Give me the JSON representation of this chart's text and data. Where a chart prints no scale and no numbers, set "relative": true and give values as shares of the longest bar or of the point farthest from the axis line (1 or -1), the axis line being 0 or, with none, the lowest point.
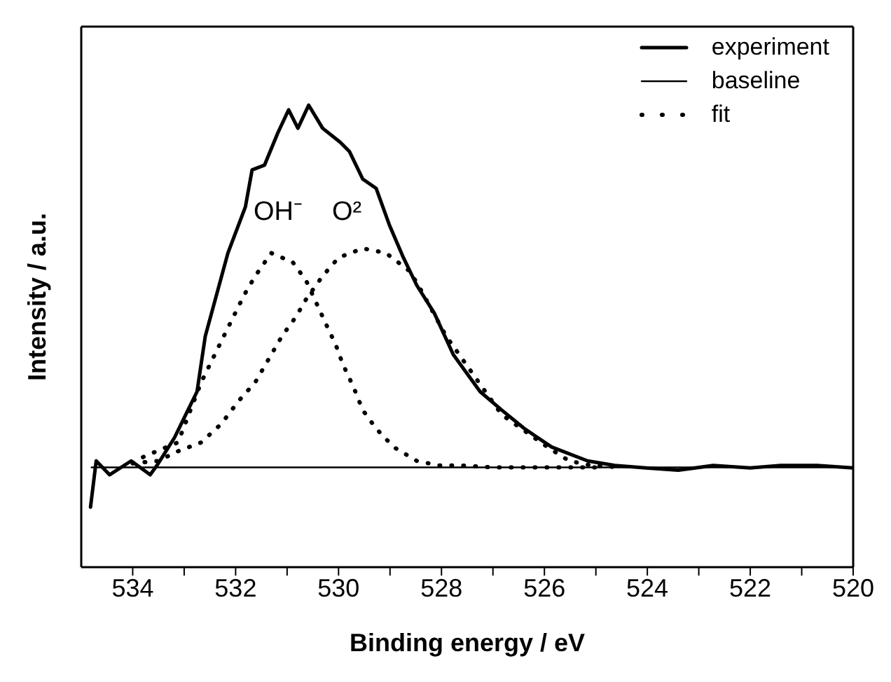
{
  "chart_data": {
    "type": "line",
    "xlabel": "Binding energy / eV",
    "ylabel": "Intensity / a.u.",
    "relative": true,
    "tick_labels": "x",
    "legend": "top right",
    "marker": "none",
    "xlim": [
      535,
      520
    ],
    "xticks": [
      534,
      {
        "value": 533,
        "label": null
      },
      532,
      {
        "value": 531,
        "label": null
      },
      530,
      {
        "value": 529,
        "label": null
      },
      528,
      {
        "value": 527,
        "label": null
      },
      526,
      {
        "value": 525,
        "label": null
      },
      524,
      {
        "value": 523,
        "label": null
      },
      522,
      {
        "value": 521,
        "label": null
      },
      520
    ],
    "annotations": [
      "OH⁻",
      "O²"
    ],
    "series": [
      {
        "name": "experiment",
        "color": "#000000",
        "line_style": "solid",
        "x": [
          534.82,
          534.71,
          534.45,
          534.03,
          533.66,
          533.53,
          533.19,
          532.75,
          532.59,
          532.15,
          531.81,
          531.68,
          531.44,
          531.18,
          530.97,
          530.79,
          530.58,
          530.31,
          529.97,
          529.79,
          529.53,
          529.27,
          529.01,
          528.74,
          528.48,
          528.14,
          527.77,
          527.25,
          526.83,
          526.39,
          525.86,
          525.16,
          524.63,
          524.03,
          523.4,
          522.72,
          522.0,
          521.41,
          520.7,
          520.0
        ],
        "values": [
          0.13,
          0.23,
          0.2,
          0.23,
          0.2,
          0.22,
          0.28,
          0.38,
          0.5,
          0.68,
          0.78,
          0.86,
          0.87,
          0.94,
          0.99,
          0.95,
          1.0,
          0.95,
          0.92,
          0.9,
          0.84,
          0.82,
          0.74,
          0.67,
          0.61,
          0.55,
          0.46,
          0.38,
          0.34,
          0.3,
          0.26,
          0.23,
          0.22,
          0.215,
          0.21,
          0.22,
          0.215,
          0.22,
          0.22,
          0.215
        ]
      },
      {
        "name": "baseline",
        "color": "#000000",
        "line_style": "solid",
        "x": [
          534.8,
          520.0
        ],
        "values": [
          0.216,
          0.216
        ]
      },
      {
        "name": "fit",
        "color": "#000000",
        "line_style": "dotted",
        "x": [
          534.0,
          533.77,
          533.12,
          532.67,
          532.23,
          531.83,
          531.62,
          531.31,
          530.89,
          530.63,
          530.26,
          530.05,
          529.92,
          529.71,
          529.53,
          529.27,
          528.93,
          528.48,
          528.04,
          527.62,
          527.0,
          526.0,
          525.0
        ],
        "values": [
          0.225,
          0.24,
          0.27,
          0.4,
          0.5,
          0.59,
          0.63,
          0.68,
          0.66,
          0.62,
          0.53,
          0.48,
          0.44,
          0.39,
          0.34,
          0.3,
          0.26,
          0.23,
          0.22,
          0.22,
          0.216,
          0.216,
          0.216
        ]
      },
      {
        "color": "#000000",
        "line_style": "dotted",
        "x": [
          534.0,
          533.5,
          533.14,
          532.67,
          532.28,
          531.94,
          531.62,
          531.36,
          531.1,
          530.84,
          530.63,
          530.31,
          530.0,
          529.53,
          529.08,
          528.61,
          528.4,
          527.91,
          526.83,
          525.94,
          525.52,
          525.08,
          524.5
        ],
        "values": [
          0.225,
          0.23,
          0.25,
          0.27,
          0.31,
          0.36,
          0.4,
          0.45,
          0.5,
          0.54,
          0.58,
          0.63,
          0.67,
          0.69,
          0.68,
          0.64,
          0.6,
          0.5,
          0.33,
          0.26,
          0.23,
          0.22,
          0.216
        ]
      }
    ]
  }
}
